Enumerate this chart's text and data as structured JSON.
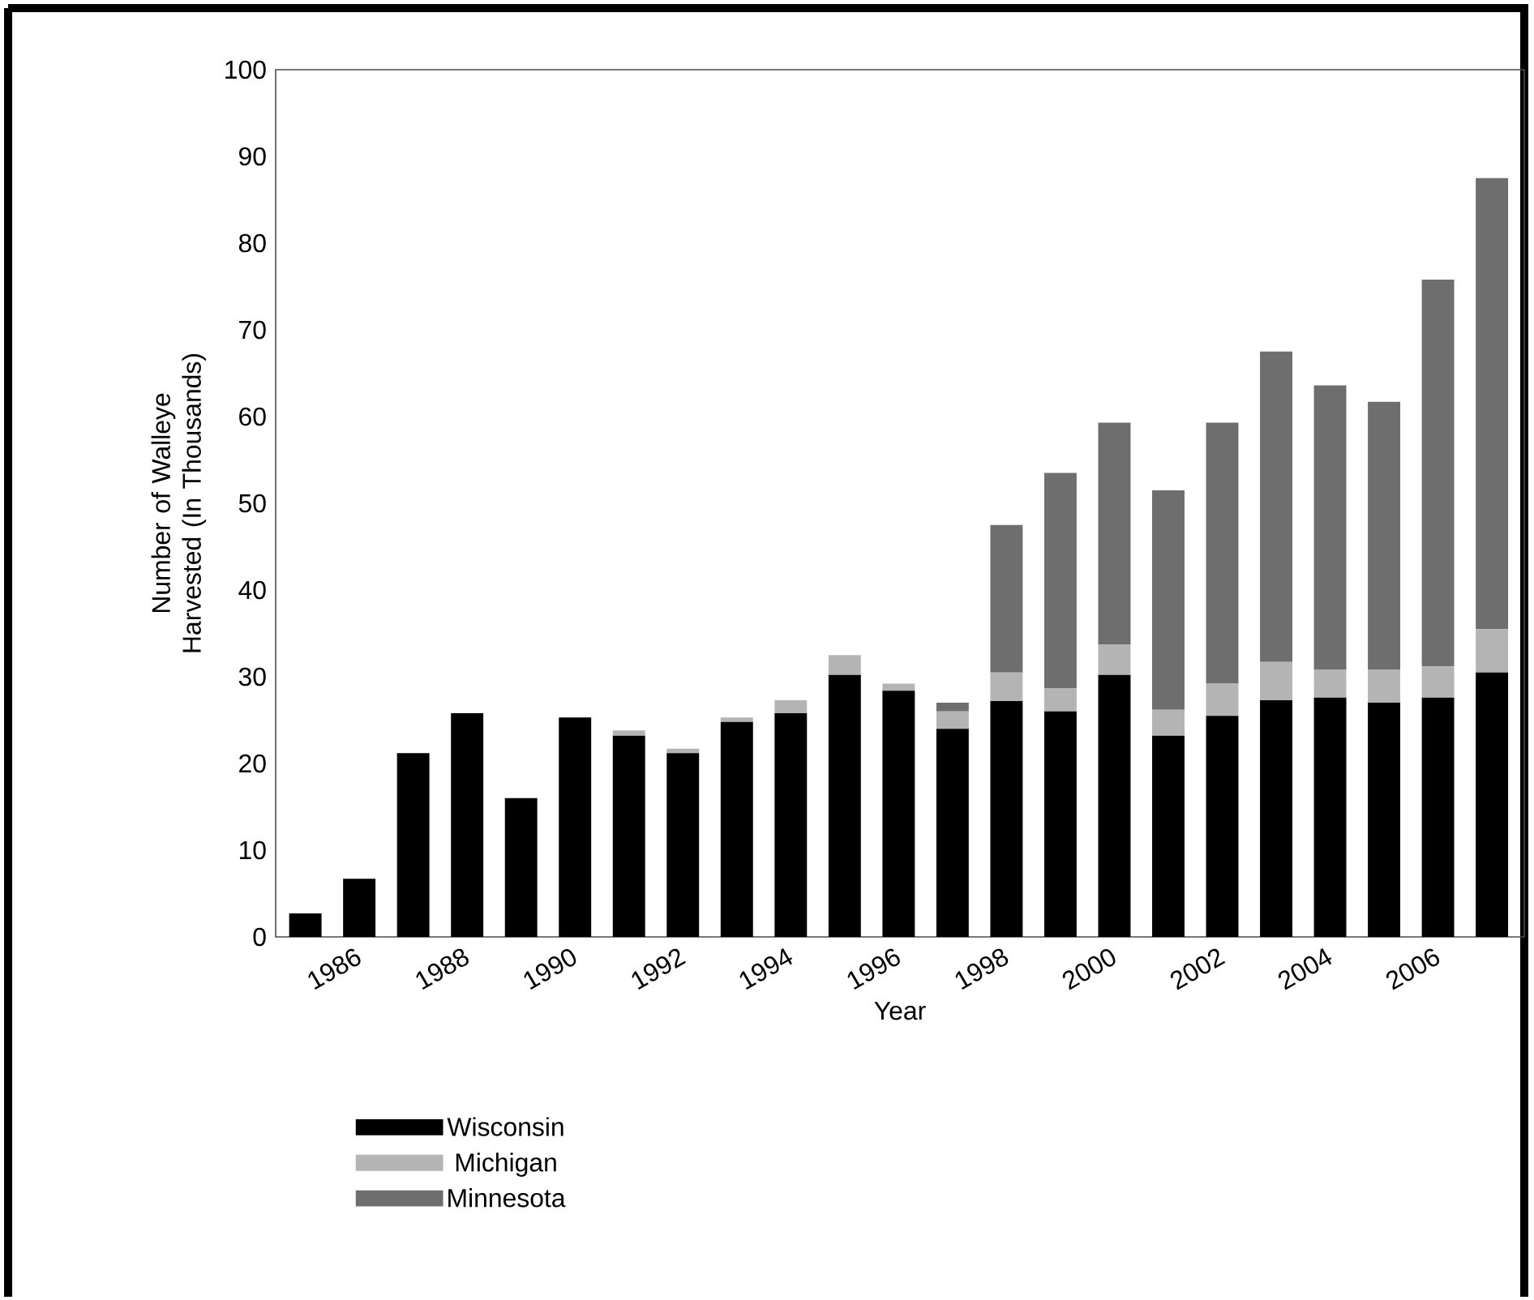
{
  "chart_data": {
    "type": "bar",
    "stacked": true,
    "xlabel": "Year",
    "ylabel": "Number of Walleye Harvested (In Thousands)",
    "categories": [
      null,
      "1986",
      null,
      "1988",
      null,
      "1990",
      null,
      "1992",
      null,
      "1994",
      null,
      "1996",
      null,
      "1998",
      null,
      "2000",
      null,
      "2002",
      null,
      "2004",
      null,
      "2006",
      null
    ],
    "series": [
      {
        "name": "Wisconsin",
        "color": "#000000",
        "values": [
          2.7,
          6.7,
          21.2,
          25.8,
          16,
          25.3,
          23.2,
          21.2,
          24.8,
          25.8,
          30.2,
          28.4,
          24,
          27.2,
          26,
          30.2,
          23.2,
          25.5,
          27.3,
          27.6,
          27,
          27.6,
          30.5
        ]
      },
      {
        "name": "Michigan",
        "color": "#b4b4b4",
        "values": [
          null,
          null,
          null,
          null,
          null,
          null,
          0.6,
          0.5,
          0.5,
          1.5,
          2.3,
          0.8,
          2,
          3.3,
          2.7,
          3.5,
          3,
          3.7,
          4.4,
          3.2,
          3.8,
          3.6,
          5
        ]
      },
      {
        "name": "Minnesota",
        "color": "#6e6e6e",
        "values": [
          null,
          null,
          null,
          null,
          null,
          null,
          null,
          null,
          null,
          null,
          null,
          null,
          1,
          17,
          24.8,
          25.6,
          25.3,
          30.1,
          35.8,
          32.8,
          30.9,
          44.6,
          52
        ]
      }
    ],
    "ylim": [
      0,
      100
    ],
    "yticks": [
      0,
      10,
      20,
      30,
      40,
      50,
      60,
      70,
      80,
      90,
      100
    ],
    "grid": false,
    "legend": "bottom"
  }
}
